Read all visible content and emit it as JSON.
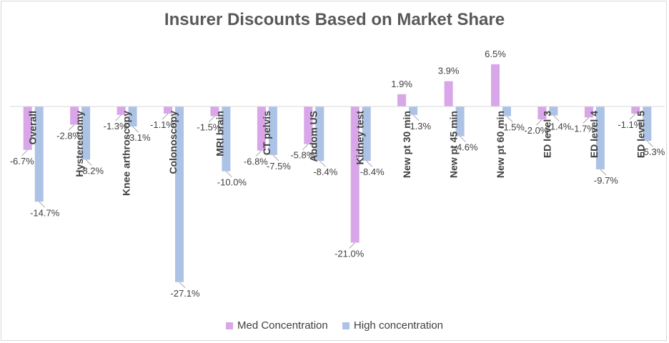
{
  "chart_data": {
    "type": "bar",
    "title": "Insurer Discounts Based on Market Share",
    "categories": [
      "Overall",
      "Hysterectomy",
      "Knee arthroscopy",
      "Colonoscopy",
      "MRI brain",
      "CT pelvis",
      "Abdom US",
      "Kidney test",
      "New pt 30 min",
      "New pt 45 min",
      "New pt 60 min",
      "ED level 3",
      "ED level 4",
      "ED level 5"
    ],
    "series": [
      {
        "name": "Med Concentration",
        "color": "#d9a6e9",
        "values": [
          -6.7,
          -2.8,
          -1.3,
          -1.1,
          -1.5,
          -6.8,
          -5.8,
          -21.0,
          1.9,
          3.9,
          6.5,
          -2.0,
          -1.7,
          -1.1
        ],
        "labels": [
          "-6.7%",
          "-2.8%",
          "-1.3%",
          "-1.1%",
          "-1.5%",
          "-6.8%",
          "-5.8%",
          "-21.0%",
          "1.9%",
          "3.9%",
          "6.5%",
          "-2.0%",
          "-1.7%",
          "-1.1%"
        ]
      },
      {
        "name": "High concentration",
        "color": "#adc3e6",
        "values": [
          -14.7,
          -8.2,
          -3.1,
          -27.1,
          -10.0,
          -7.5,
          -8.4,
          -8.4,
          -1.3,
          -4.6,
          -1.5,
          -1.4,
          -9.7,
          -5.3
        ],
        "labels": [
          "-14.7%",
          "-8.2%",
          "-3.1%",
          "-27.1%",
          "-10.0%",
          "-7.5%",
          "-8.4%",
          "-8.4%",
          "-1.3%",
          "-4.6%",
          "-1.5%",
          "-1.4%",
          "-9.7%",
          "-5.3%"
        ]
      }
    ],
    "ylim": [
      -30,
      8
    ],
    "grid": false,
    "legend": "bottom"
  }
}
